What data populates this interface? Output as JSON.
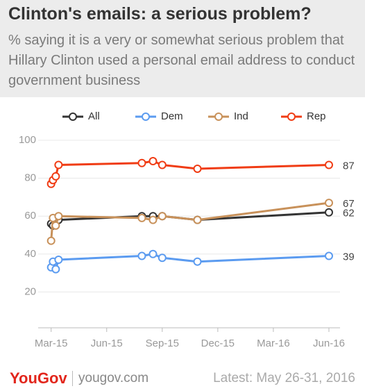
{
  "chart_data": {
    "type": "line",
    "title": "Clinton's emails: a serious problem?",
    "subtitle": "% saying it is a very or somewhat serious problem that Hillary Clinton used a personal email address to conduct government business",
    "x": [
      0,
      0.1,
      0.25,
      0.4,
      4.9,
      5.5,
      6.0,
      7.9,
      15.0
    ],
    "xlim": [
      -0.7,
      15.6
    ],
    "xticks": [
      {
        "value": 0,
        "label": "Mar-15"
      },
      {
        "value": 3,
        "label": "Jun-15"
      },
      {
        "value": 6,
        "label": "Sep-15"
      },
      {
        "value": 9,
        "label": "Dec-15"
      },
      {
        "value": 12,
        "label": "Mar-16"
      },
      {
        "value": 15,
        "label": "Jun-16"
      }
    ],
    "ylim": [
      0,
      100
    ],
    "yticks": [
      20,
      40,
      60,
      80,
      100
    ],
    "grid": true,
    "legend": "top",
    "series": [
      {
        "name": "All",
        "color": "#333333",
        "values": [
          56,
          55,
          58,
          58,
          60,
          60,
          60,
          58,
          62
        ]
      },
      {
        "name": "Dem",
        "color": "#5b9bf0",
        "values": [
          33,
          36,
          32,
          37,
          39,
          40,
          38,
          36,
          39
        ]
      },
      {
        "name": "Ind",
        "color": "#c8915a",
        "values": [
          47,
          59,
          55,
          60,
          59,
          58,
          60,
          58,
          67
        ]
      },
      {
        "name": "Rep",
        "color": "#f03c14",
        "values": [
          77,
          79,
          81,
          87,
          88,
          89,
          87,
          85,
          87
        ]
      }
    ]
  },
  "footer": {
    "brand": "YouGov",
    "site": "yougov.com",
    "note": "Latest: May 26-31, 2016"
  }
}
